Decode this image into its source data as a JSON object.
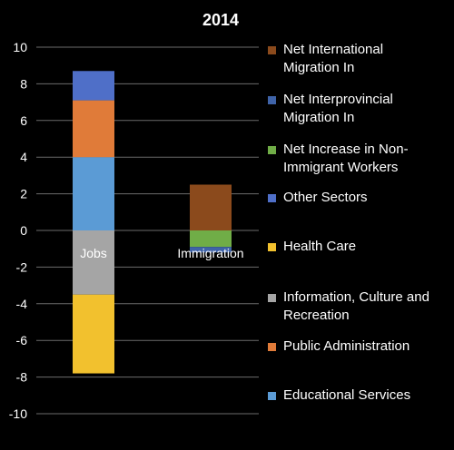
{
  "chart_data": {
    "type": "bar",
    "stacked": true,
    "title": "2014",
    "categories": [
      "Jobs",
      "Immigration"
    ],
    "ylim": [
      -10,
      10
    ],
    "yticks": [
      -10,
      -8,
      -6,
      -4,
      -2,
      0,
      2,
      4,
      6,
      8,
      10
    ],
    "grid": true,
    "legend_position": "right",
    "series": [
      {
        "name": "Educational Services",
        "color": "#5b9bd5",
        "values": [
          4.0,
          0
        ]
      },
      {
        "name": "Public Administration",
        "color": "#e07b39",
        "values": [
          3.1,
          0
        ]
      },
      {
        "name": "Other Sectors",
        "color": "#4f6fc8",
        "values": [
          1.6,
          0
        ]
      },
      {
        "name": "Information, Culture and Recreation",
        "color": "#a5a5a5",
        "values": [
          -3.5,
          0
        ]
      },
      {
        "name": "Health Care",
        "color": "#f2c12e",
        "values": [
          -4.3,
          0
        ]
      },
      {
        "name": "Net International Migration In",
        "color": "#8b4a1c",
        "values": [
          0,
          2.5
        ]
      },
      {
        "name": "Net Increase in Non-Immigrant Workers",
        "color": "#70ad47",
        "values": [
          0,
          -0.9
        ]
      },
      {
        "name": "Net Interprovincial Migration In",
        "color": "#3f63a8",
        "values": [
          0,
          -0.3
        ]
      }
    ],
    "legend_order": [
      "Net International Migration In",
      "Net Interprovincial Migration In",
      "Net Increase in Non-Immigrant Workers",
      "Other Sectors",
      "Health Care",
      "Information, Culture and Recreation",
      "Public Administration",
      "Educational Services"
    ],
    "legend_labels": {
      "Net International Migration In": "Net International\nMigration In",
      "Net Interprovincial Migration In": "Net Interprovincial\nMigration In",
      "Net Increase in Non-Immigrant Workers": "Net Increase in Non-\nImmigrant Workers",
      "Other Sectors": "Other Sectors",
      "Health Care": "Health Care",
      "Information, Culture and Recreation": "Information, Culture and\nRecreation",
      "Public Administration": "Public Administration",
      "Educational Services": "Educational Services"
    }
  }
}
